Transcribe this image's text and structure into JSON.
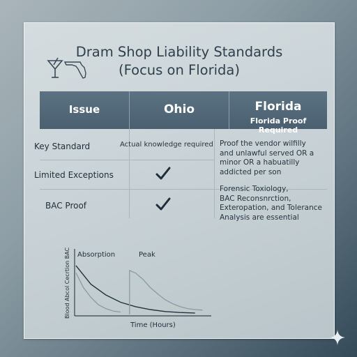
{
  "title": {
    "line1": "Dram Shop Liability Standards",
    "line2": "(Focus on Florida)"
  },
  "icons": [
    "martini-glass-icon",
    "florida-map-icon",
    "checkmark-icon",
    "sparkle-icon"
  ],
  "colors": {
    "header_bg": "#52697a",
    "text_dark": "#2f3f4c",
    "accent_line": "#9aaab3"
  },
  "table": {
    "headers": {
      "issue": "Issue",
      "ohio": "Ohio",
      "florida": "Florida",
      "florida_sub": "Florida Proof Required"
    },
    "rows": [
      {
        "label": "Key Standard",
        "ohio": "Actual knowledge required"
      },
      {
        "label": "Limited Exceptions",
        "ohio_check": true
      },
      {
        "label": "BAC Proof",
        "ohio_check": true
      }
    ],
    "florida_text": {
      "block1": [
        "Proof the vendor wilfilly",
        "and unlawful served OR a",
        "minor OR a habuatilly",
        "addicted per son"
      ],
      "block2": [
        "Forensic Toxiology,",
        "BAC Reconsnrction,",
        "Exteropation, and Tolerance",
        "Analysis are essential"
      ]
    }
  },
  "chart_data": {
    "type": "line",
    "xlabel": "Time (Hours)",
    "ylabel": "Blood Abcol Cecrtion BAC",
    "annotations": [
      "Absorption",
      "Peak"
    ],
    "series": [
      {
        "x": [
          0,
          1,
          2,
          3,
          4,
          5,
          6,
          7,
          8
        ],
        "values": [
          1.0,
          0.62,
          0.4,
          0.25,
          0.16,
          0.1,
          0.06,
          0.04,
          0.03
        ]
      },
      {
        "x": [
          0,
          0.5,
          1,
          1.5,
          2,
          2.5,
          3
        ],
        "values": [
          0.85,
          0.55,
          0.35,
          0.2,
          0.12,
          0.07,
          0.05
        ]
      },
      {
        "x": [
          3.6,
          4,
          4.5,
          5,
          5.5,
          6,
          6.5,
          7,
          7.5,
          8,
          8.5
        ],
        "values": [
          0.9,
          0.85,
          0.72,
          0.55,
          0.42,
          0.3,
          0.22,
          0.16,
          0.12,
          0.1,
          0.09
        ]
      }
    ]
  }
}
